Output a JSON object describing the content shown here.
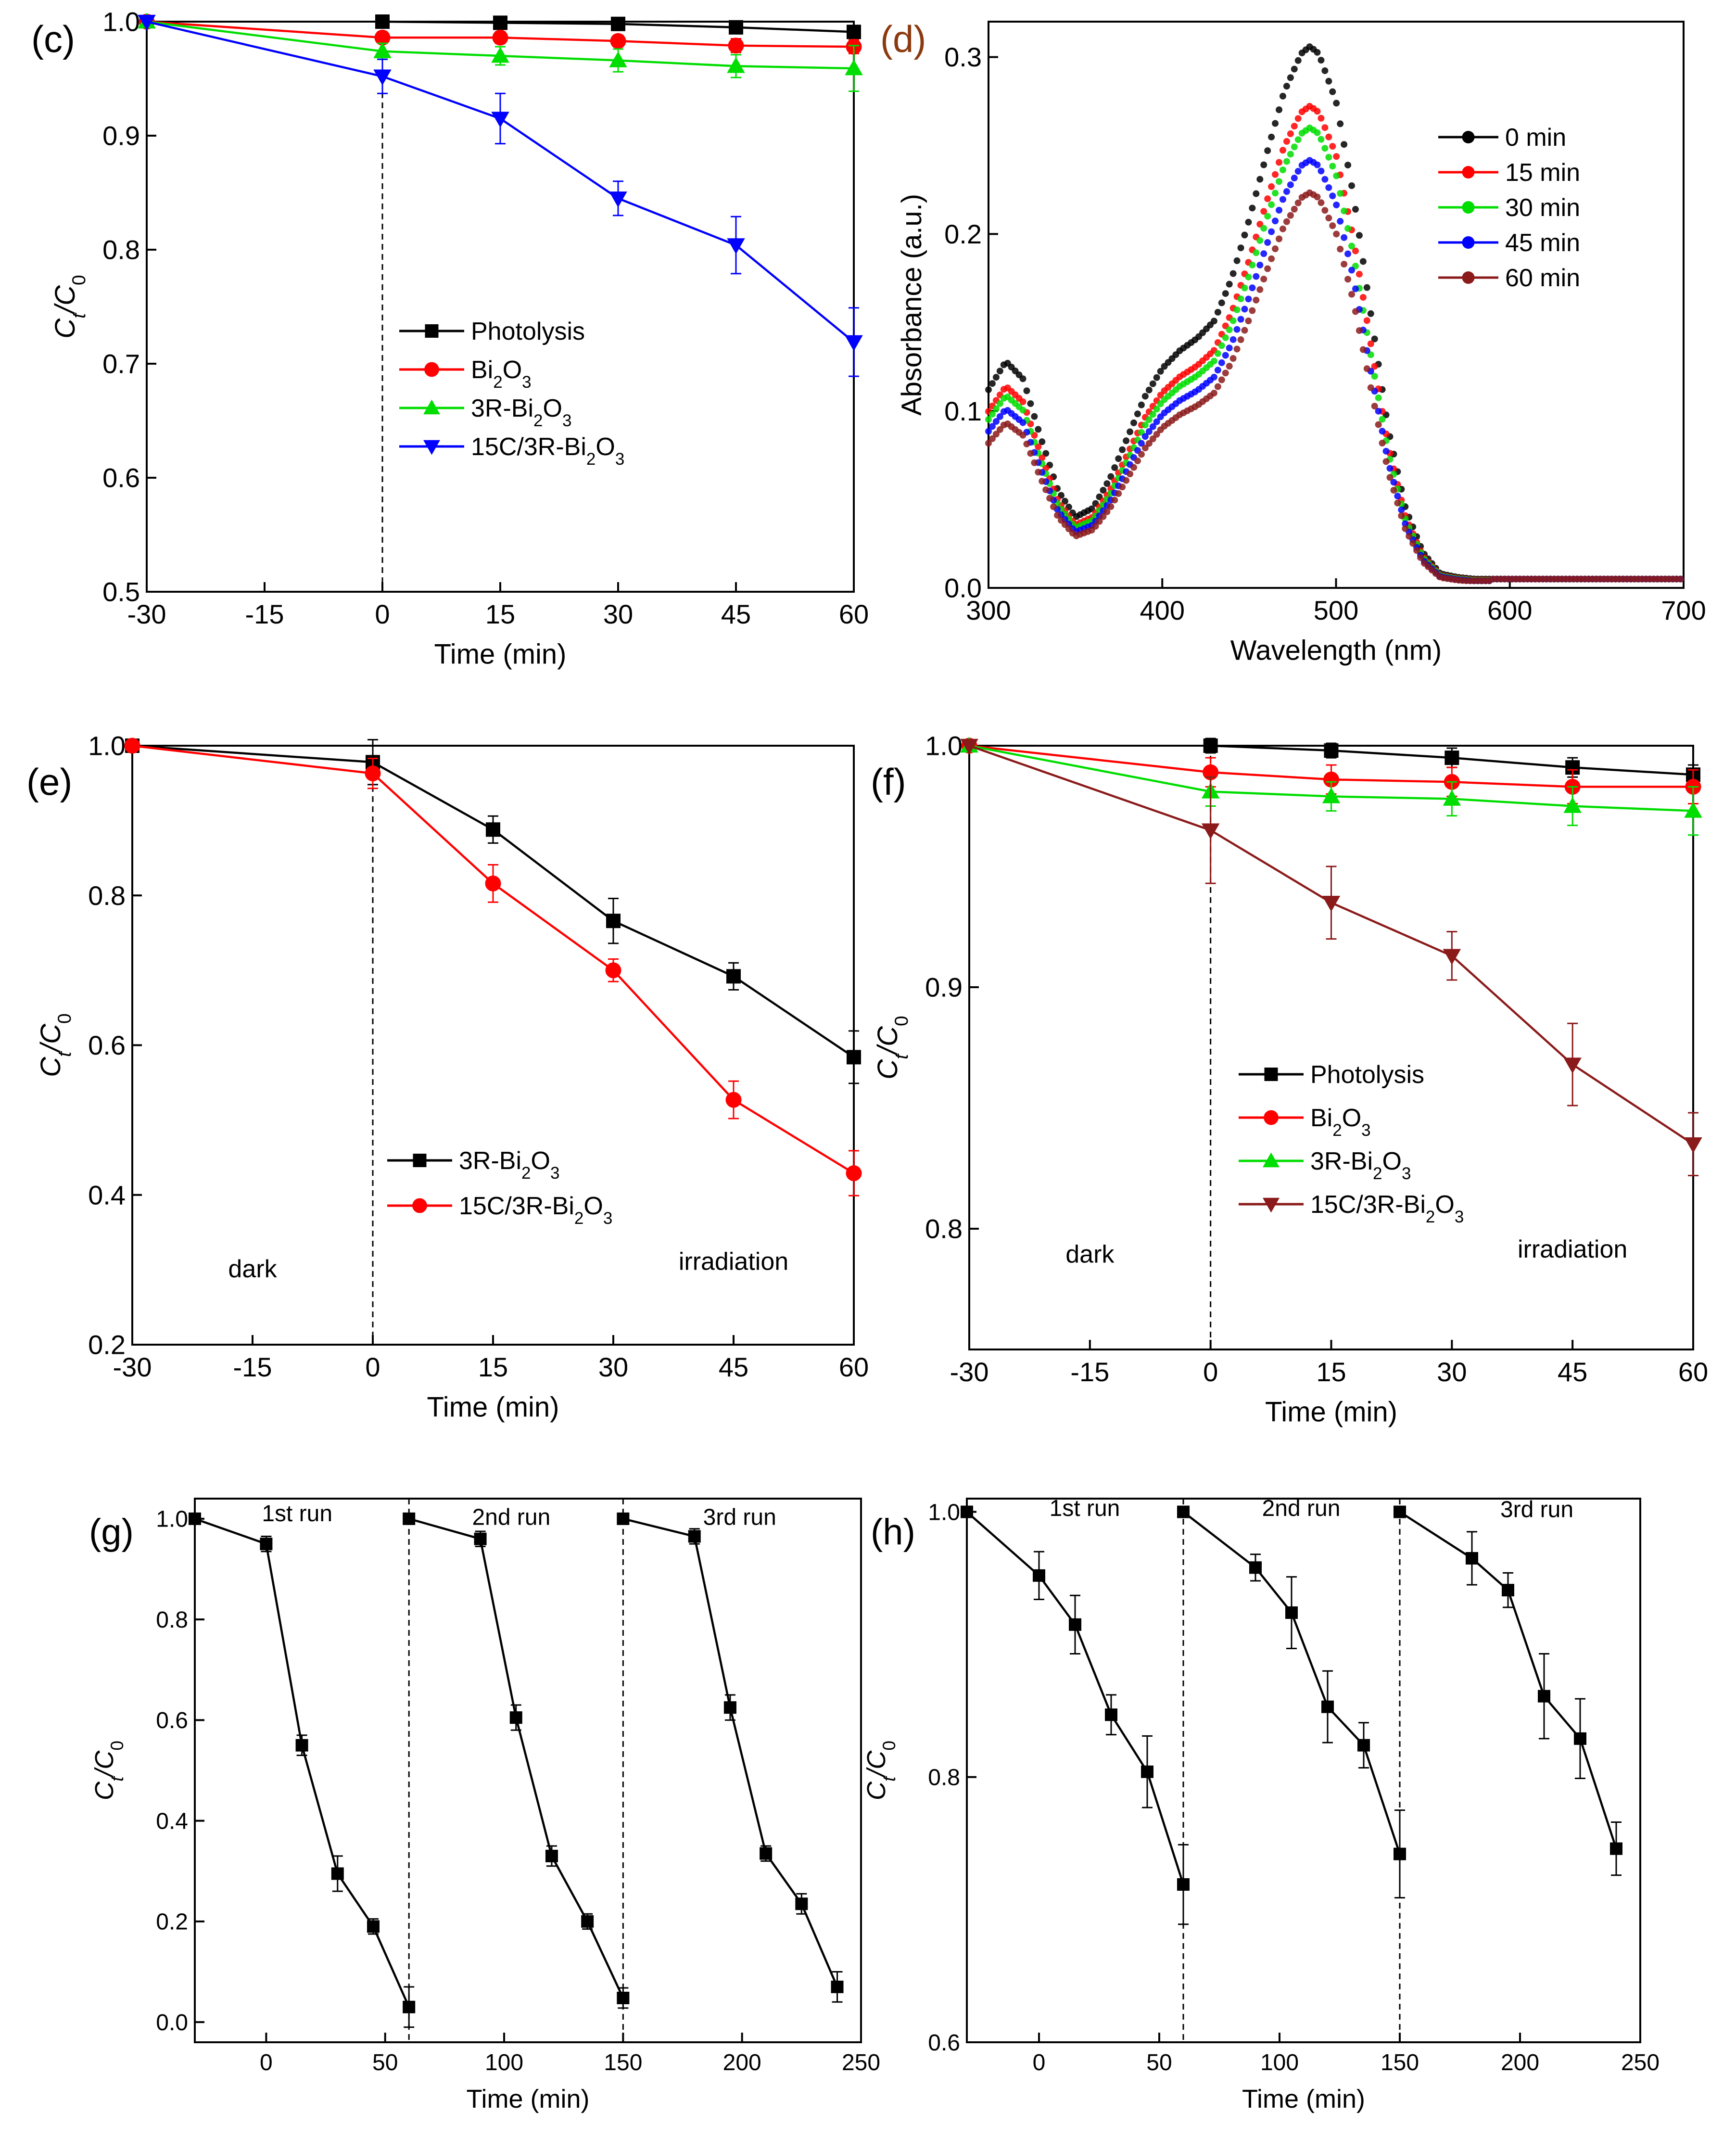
{
  "chart_data": [
    {
      "panel": "(c)",
      "panel_color": "#000000",
      "type": "line",
      "xlabel": "Time (min)",
      "ylabel": "Ct/C0",
      "xlim": [
        -30,
        60
      ],
      "ylim": [
        0.5,
        1.0
      ],
      "xticks": [
        -30,
        -15,
        0,
        15,
        30,
        45,
        60
      ],
      "yticks": [
        0.5,
        0.6,
        0.7,
        0.8,
        0.9,
        1.0
      ],
      "ytick_decimals": 1,
      "dashed_x": [
        0
      ],
      "legend_position": "center",
      "series": [
        {
          "name": "Photolysis",
          "color": "#000000",
          "marker": "square",
          "x": [
            0,
            15,
            30,
            45,
            60
          ],
          "values": [
            1.0,
            0.999,
            0.998,
            0.995,
            0.991
          ],
          "errors": [
            0.004,
            0.004,
            0.004,
            0.005,
            0.005
          ]
        },
        {
          "name": "Bi2O3",
          "color": "#ff0000",
          "marker": "circle",
          "x": [
            -30,
            0,
            15,
            30,
            45,
            60
          ],
          "values": [
            1.0,
            0.986,
            0.986,
            0.983,
            0.979,
            0.978
          ],
          "errors": [
            0,
            0.005,
            0.005,
            0.005,
            0.006,
            0.006
          ]
        },
        {
          "name": "3R-Bi2O3",
          "color": "#00dd00",
          "marker": "triangle-up",
          "x": [
            -30,
            0,
            15,
            30,
            45,
            60
          ],
          "values": [
            1.0,
            0.974,
            0.97,
            0.966,
            0.961,
            0.959
          ],
          "errors": [
            0,
            0.007,
            0.008,
            0.01,
            0.01,
            0.02
          ]
        },
        {
          "name": "15C/3R-Bi2O3",
          "color": "#0000ff",
          "marker": "triangle-down",
          "x": [
            -30,
            0,
            15,
            30,
            45,
            60
          ],
          "values": [
            1.0,
            0.952,
            0.915,
            0.845,
            0.804,
            0.719
          ],
          "errors": [
            0,
            0.015,
            0.022,
            0.015,
            0.025,
            0.03
          ]
        }
      ]
    },
    {
      "panel": "(d)",
      "panel_color": "#8b3a0f",
      "type": "scatter",
      "xlabel": "Wavelength (nm)",
      "ylabel": "Absorbance (a.u.)",
      "xlim": [
        300,
        700
      ],
      "ylim": [
        0.0,
        0.32
      ],
      "xticks": [
        300,
        400,
        500,
        600,
        700
      ],
      "yticks": [
        0.0,
        0.1,
        0.2,
        0.3
      ],
      "ytick_decimals": 1,
      "legend_position": "top-right",
      "spectrum_x": [
        300,
        310,
        320,
        330,
        340,
        350,
        360,
        370,
        380,
        390,
        400,
        410,
        420,
        430,
        440,
        450,
        460,
        470,
        480,
        485,
        490,
        500,
        510,
        520,
        530,
        540,
        550,
        560,
        570,
        580,
        600,
        650,
        700
      ],
      "spectrum_base": [
        0.112,
        0.128,
        0.118,
        0.085,
        0.055,
        0.04,
        0.045,
        0.062,
        0.085,
        0.108,
        0.124,
        0.134,
        0.141,
        0.151,
        0.175,
        0.208,
        0.245,
        0.28,
        0.302,
        0.306,
        0.302,
        0.275,
        0.222,
        0.155,
        0.09,
        0.045,
        0.02,
        0.008,
        0.006,
        0.005,
        0.005,
        0.005,
        0.005
      ],
      "series": [
        {
          "name": "0 min",
          "color": "#000000",
          "factor": 1.0
        },
        {
          "name": "15 min",
          "color": "#ff0000",
          "factor": 0.89
        },
        {
          "name": "30 min",
          "color": "#00dd00",
          "factor": 0.85
        },
        {
          "name": "45 min",
          "color": "#0000ff",
          "factor": 0.79
        },
        {
          "name": "60 min",
          "color": "#8b1a1a",
          "factor": 0.73
        }
      ]
    },
    {
      "panel": "(e)",
      "panel_color": "#000000",
      "type": "line",
      "xlabel": "Time (min)",
      "ylabel": "Ct/C0",
      "xlim": [
        -30,
        60
      ],
      "ylim": [
        0.2,
        1.0
      ],
      "xticks": [
        -30,
        -15,
        0,
        15,
        30,
        45,
        60
      ],
      "yticks": [
        0.2,
        0.4,
        0.6,
        0.8,
        1.0
      ],
      "ytick_decimals": 1,
      "dashed_x": [
        0
      ],
      "legend_position": "center",
      "annotations": [
        {
          "text": "dark",
          "x": -15,
          "y": 0.29
        },
        {
          "text": "irradiation",
          "x": 45,
          "y": 0.3
        }
      ],
      "series": [
        {
          "name": "3R-Bi2O3",
          "color": "#000000",
          "marker": "square",
          "x": [
            -30,
            0,
            15,
            30,
            45,
            60
          ],
          "values": [
            1.0,
            0.978,
            0.888,
            0.766,
            0.692,
            0.584
          ],
          "errors": [
            0,
            0.03,
            0.018,
            0.03,
            0.018,
            0.035
          ]
        },
        {
          "name": "15C/3R-Bi2O3",
          "color": "#ff0000",
          "marker": "circle",
          "x": [
            -30,
            0,
            15,
            30,
            45,
            60
          ],
          "values": [
            1.0,
            0.963,
            0.816,
            0.7,
            0.527,
            0.429
          ],
          "errors": [
            0,
            0.02,
            0.025,
            0.015,
            0.025,
            0.03
          ]
        }
      ]
    },
    {
      "panel": "(f)",
      "panel_color": "#000000",
      "type": "line",
      "xlabel": "Time (min)",
      "ylabel": "Ct/C0",
      "xlim": [
        -30,
        60
      ],
      "ylim": [
        0.75,
        1.0
      ],
      "xticks": [
        -30,
        -15,
        0,
        15,
        30,
        45,
        60
      ],
      "yticks": [
        0.8,
        0.9,
        1.0
      ],
      "ytick_decimals": 1,
      "dashed_x": [
        0
      ],
      "legend_position": "center-left",
      "annotations": [
        {
          "text": "dark",
          "x": -15,
          "y": 0.786
        },
        {
          "text": "irradiation",
          "x": 45,
          "y": 0.788
        }
      ],
      "series": [
        {
          "name": "Photolysis",
          "color": "#000000",
          "marker": "square",
          "x": [
            0,
            15,
            30,
            45,
            60
          ],
          "values": [
            1.0,
            0.998,
            0.995,
            0.991,
            0.988
          ],
          "errors": [
            0.003,
            0.003,
            0.004,
            0.004,
            0.004
          ]
        },
        {
          "name": "Bi2O3",
          "color": "#ff0000",
          "marker": "circle",
          "x": [
            -30,
            0,
            15,
            30,
            45,
            60
          ],
          "values": [
            1.0,
            0.989,
            0.986,
            0.985,
            0.983,
            0.983
          ],
          "errors": [
            0,
            0.006,
            0.006,
            0.006,
            0.007,
            0.007
          ]
        },
        {
          "name": "3R-Bi2O3",
          "color": "#00dd00",
          "marker": "triangle-up",
          "x": [
            -30,
            0,
            15,
            30,
            45,
            60
          ],
          "values": [
            1.0,
            0.981,
            0.979,
            0.978,
            0.975,
            0.973
          ],
          "errors": [
            0,
            0.006,
            0.006,
            0.007,
            0.008,
            0.01
          ]
        },
        {
          "name": "15C/3R-Bi2O3",
          "color": "#8b1a1a",
          "marker": "triangle-down",
          "x": [
            -30,
            0,
            15,
            30,
            45,
            60
          ],
          "values": [
            1.0,
            0.965,
            0.935,
            0.913,
            0.868,
            0.835
          ],
          "errors": [
            0,
            0.022,
            0.015,
            0.01,
            0.017,
            0.013
          ]
        }
      ]
    },
    {
      "panel": "(g)",
      "panel_color": "#000000",
      "type": "line",
      "xlabel": "Time (min)",
      "ylabel": "Ct/C0",
      "xlim": [
        -30,
        250
      ],
      "ylim": [
        -0.04,
        1.04
      ],
      "xticks": [
        0,
        50,
        100,
        150,
        200,
        250
      ],
      "yticks": [
        0.0,
        0.2,
        0.4,
        0.6,
        0.8,
        1.0
      ],
      "ytick_decimals": 1,
      "dashed_x": [
        60,
        150
      ],
      "annotations": [
        {
          "text": "1st run",
          "x": 13,
          "y": 0.995
        },
        {
          "text": "2nd run",
          "x": 103,
          "y": 0.988
        },
        {
          "text": "3rd run",
          "x": 199,
          "y": 0.988
        }
      ],
      "series": [
        {
          "name": "run 1",
          "color": "#000000",
          "marker": "square",
          "x": [
            -30,
            0,
            15,
            30,
            45,
            60
          ],
          "values": [
            1.0,
            0.95,
            0.55,
            0.295,
            0.19,
            0.03
          ],
          "errors": [
            0,
            0.015,
            0.02,
            0.035,
            0.015,
            0.04
          ]
        },
        {
          "name": "run 2",
          "color": "#000000",
          "marker": "square",
          "x": [
            60,
            90,
            105,
            120,
            135,
            150
          ],
          "values": [
            1.0,
            0.96,
            0.605,
            0.33,
            0.2,
            0.048
          ],
          "errors": [
            0,
            0.015,
            0.025,
            0.02,
            0.015,
            0.02
          ]
        },
        {
          "name": "run 3",
          "color": "#000000",
          "marker": "square",
          "x": [
            150,
            180,
            195,
            210,
            225,
            240
          ],
          "values": [
            1.0,
            0.965,
            0.625,
            0.335,
            0.235,
            0.07
          ],
          "errors": [
            0,
            0.015,
            0.025,
            0.015,
            0.02,
            0.03
          ]
        }
      ]
    },
    {
      "panel": "(h)",
      "panel_color": "#000000",
      "type": "line",
      "xlabel": "Time (min)",
      "ylabel": "Ct/C0",
      "xlim": [
        -30,
        250
      ],
      "ylim": [
        0.6,
        1.01
      ],
      "xticks": [
        0,
        50,
        100,
        150,
        200,
        250
      ],
      "yticks": [
        0.6,
        0.8,
        1.0
      ],
      "ytick_decimals": 1,
      "dashed_x": [
        60,
        150
      ],
      "annotations": [
        {
          "text": "1st run",
          "x": 19,
          "y": 0.997
        },
        {
          "text": "2nd run",
          "x": 109,
          "y": 0.997
        },
        {
          "text": "3rd run",
          "x": 207,
          "y": 0.996
        }
      ],
      "series": [
        {
          "name": "run 1",
          "color": "#000000",
          "marker": "square",
          "x": [
            -30,
            0,
            15,
            30,
            45,
            60
          ],
          "values": [
            1.0,
            0.952,
            0.915,
            0.847,
            0.804,
            0.719
          ],
          "errors": [
            0,
            0.018,
            0.022,
            0.015,
            0.027,
            0.03
          ]
        },
        {
          "name": "run 2",
          "color": "#000000",
          "marker": "square",
          "x": [
            60,
            90,
            105,
            120,
            135,
            150
          ],
          "values": [
            1.0,
            0.958,
            0.924,
            0.853,
            0.824,
            0.742
          ],
          "errors": [
            0,
            0.01,
            0.027,
            0.027,
            0.017,
            0.033
          ]
        },
        {
          "name": "run 3",
          "color": "#000000",
          "marker": "square",
          "x": [
            150,
            180,
            195,
            210,
            225,
            240
          ],
          "values": [
            1.0,
            0.965,
            0.941,
            0.861,
            0.829,
            0.746
          ],
          "errors": [
            0,
            0.02,
            0.013,
            0.032,
            0.03,
            0.02
          ]
        }
      ]
    }
  ]
}
